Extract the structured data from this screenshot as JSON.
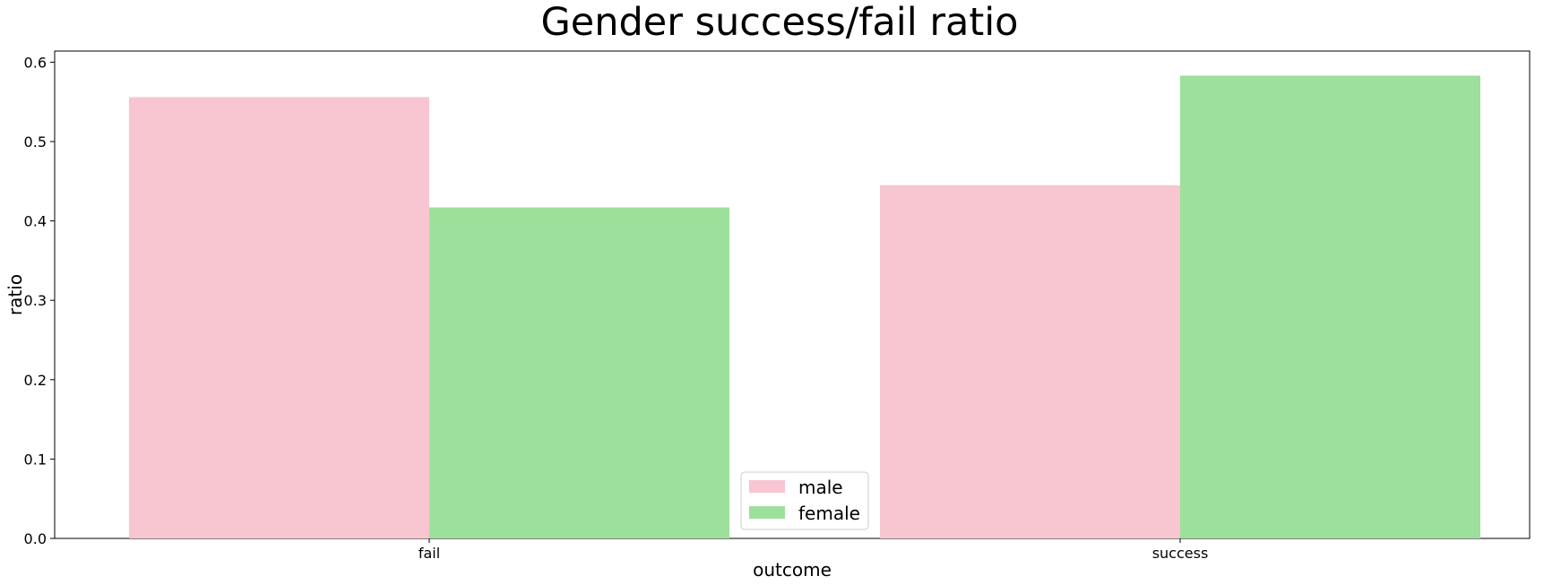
{
  "chart_data": {
    "type": "bar",
    "title": "Gender success/fail ratio",
    "xlabel": "outcome",
    "ylabel": "ratio",
    "categories": [
      "fail",
      "success"
    ],
    "series": [
      {
        "name": "male",
        "values": [
          0.556,
          0.445
        ],
        "color": "#f7c6d0"
      },
      {
        "name": "female",
        "values": [
          0.417,
          0.583
        ],
        "color": "#9de09b"
      }
    ],
    "ylim": [
      0,
      0.614
    ],
    "yticks": [
      "0.0",
      "0.1",
      "0.2",
      "0.3",
      "0.4",
      "0.5",
      "0.6"
    ],
    "grid": false,
    "legend_position": "bottom-center"
  }
}
